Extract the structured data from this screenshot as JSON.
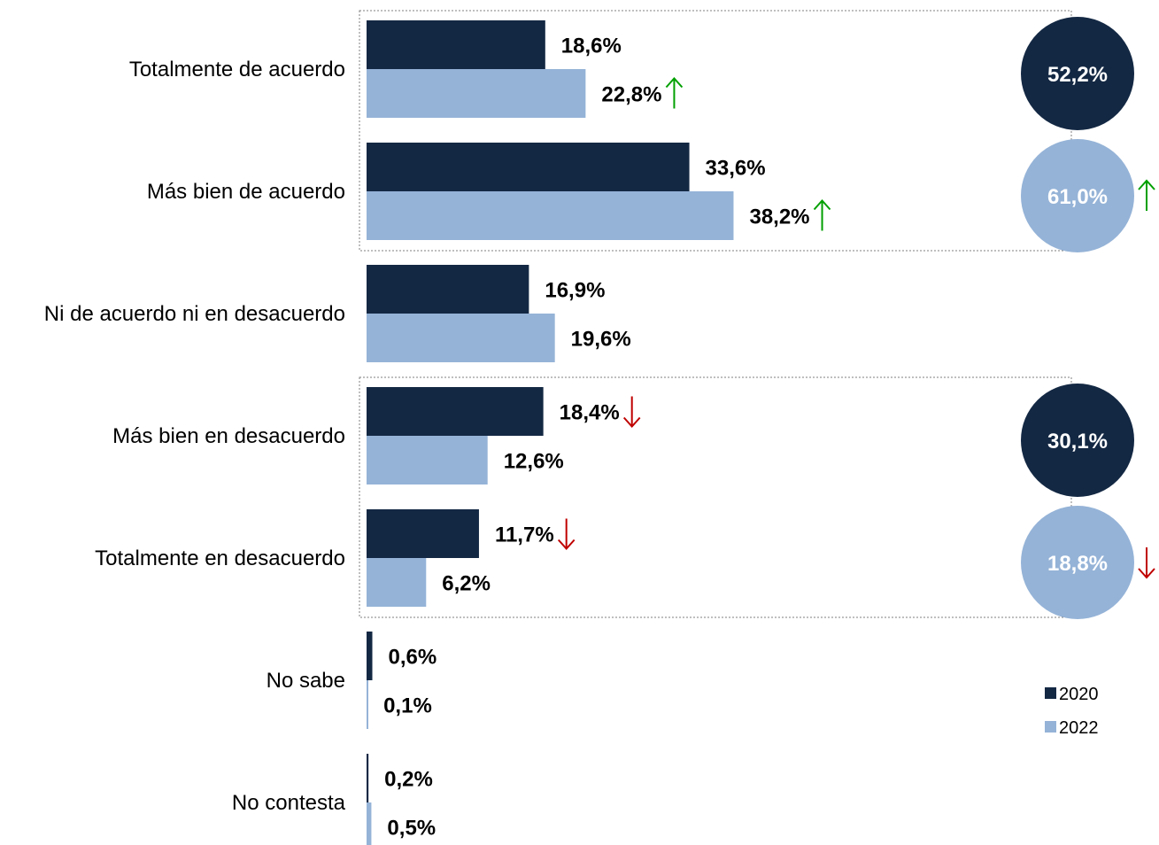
{
  "chart_data": {
    "type": "bar",
    "orientation": "horizontal",
    "categories": [
      "Totalmente de acuerdo",
      "Más bien de acuerdo",
      "Ni de acuerdo ni en desacuerdo",
      "Más bien en desacuerdo",
      "Totalmente en desacuerdo",
      "No sabe",
      "No contesta"
    ],
    "series": [
      {
        "name": "2020",
        "values": [
          18.6,
          33.6,
          16.9,
          18.4,
          11.7,
          0.6,
          0.2
        ],
        "labels": [
          "18,6%",
          "33,6%",
          "16,9%",
          "18,4%",
          "11,7%",
          "0,6%",
          "0,2%"
        ],
        "trend": [
          null,
          null,
          null,
          "down",
          "down",
          null,
          null
        ],
        "color": "#132843"
      },
      {
        "name": "2022",
        "values": [
          22.8,
          38.2,
          19.6,
          12.6,
          6.2,
          0.1,
          0.5
        ],
        "labels": [
          "22,8%",
          "38,2%",
          "19,6%",
          "12,6%",
          "6,2%",
          "0,1%",
          "0,5%"
        ],
        "trend": [
          "up",
          "up",
          null,
          null,
          null,
          null,
          null
        ],
        "color": "#95B3D7"
      }
    ],
    "xlim": [
      0,
      40
    ],
    "grid": false,
    "legend": "right",
    "groups": [
      {
        "categories": [
          "Totalmente de acuerdo",
          "Más bien de acuerdo"
        ],
        "totals": [
          {
            "series": "2020",
            "value": 52.2,
            "label": "52,2%",
            "trend": null
          },
          {
            "series": "2022",
            "value": 61.0,
            "label": "61,0%",
            "trend": "up"
          }
        ]
      },
      {
        "categories": [
          "Más bien en desacuerdo",
          "Totalmente en desacuerdo"
        ],
        "totals": [
          {
            "series": "2020",
            "value": 30.1,
            "label": "30,1%",
            "trend": null
          },
          {
            "series": "2022",
            "value": 18.8,
            "label": "18,8%",
            "trend": "down"
          }
        ]
      }
    ],
    "colors": {
      "up": "#00A000",
      "down": "#C00000",
      "group_border": "#7F7F7F"
    }
  }
}
